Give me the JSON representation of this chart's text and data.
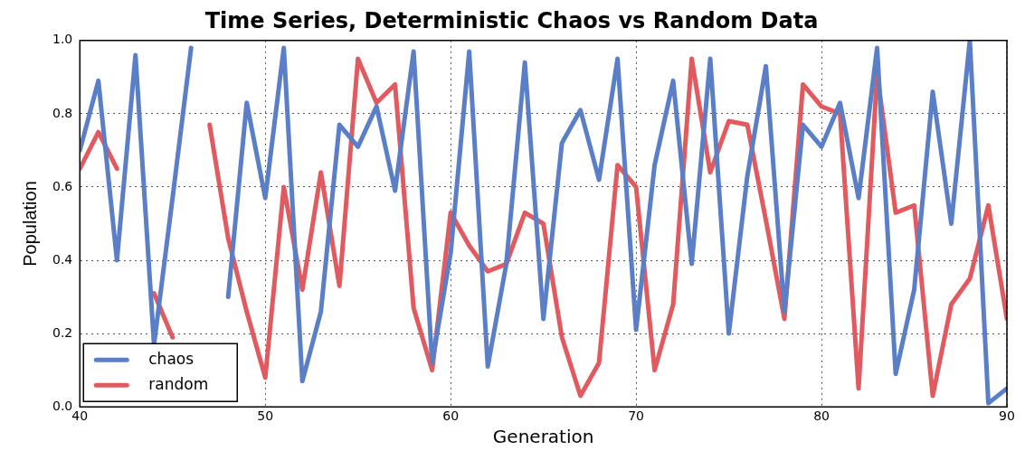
{
  "chart_data": {
    "type": "line",
    "title": "Time Series, Deterministic Chaos vs Random Data",
    "xlabel": "Generation",
    "ylabel": "Population",
    "x": [
      40,
      41,
      42,
      43,
      44,
      45,
      46,
      47,
      48,
      49,
      50,
      51,
      52,
      53,
      54,
      55,
      56,
      57,
      58,
      59,
      60,
      61,
      62,
      63,
      64,
      65,
      66,
      67,
      68,
      69,
      70,
      71,
      72,
      73,
      74,
      75,
      76,
      77,
      78,
      79,
      80,
      81,
      82,
      83,
      84,
      85,
      86,
      87,
      88,
      89,
      90
    ],
    "series": [
      {
        "name": "chaos",
        "color": "#5b7fc7",
        "values": [
          0.7,
          0.89,
          0.4,
          0.96,
          0.17,
          0.57,
          0.98,
          null,
          0.3,
          0.83,
          0.57,
          0.98,
          0.07,
          0.26,
          0.77,
          0.71,
          0.82,
          0.59,
          0.97,
          0.12,
          0.42,
          0.97,
          0.11,
          0.39,
          0.94,
          0.24,
          0.72,
          0.81,
          0.62,
          0.95,
          0.21,
          0.66,
          0.89,
          0.39,
          0.95,
          0.2,
          0.63,
          0.93,
          0.26,
          0.77,
          0.71,
          0.83,
          0.57,
          0.98,
          0.09,
          0.32,
          0.86,
          0.5,
          1.0,
          0.01,
          0.05
        ]
      },
      {
        "name": "random",
        "color": "#e05a5f",
        "values": [
          0.65,
          0.75,
          0.65,
          null,
          0.31,
          0.19,
          null,
          0.77,
          0.46,
          0.26,
          0.08,
          0.6,
          0.32,
          0.64,
          0.33,
          0.95,
          0.83,
          0.88,
          0.27,
          0.1,
          0.53,
          0.44,
          0.37,
          0.39,
          0.53,
          0.5,
          0.19,
          0.03,
          0.12,
          0.66,
          0.6,
          0.1,
          0.28,
          0.95,
          0.64,
          0.78,
          0.77,
          0.51,
          0.24,
          0.88,
          0.82,
          0.8,
          0.05,
          0.91,
          0.53,
          0.55,
          0.03,
          0.28,
          0.35,
          0.55,
          0.24
        ]
      }
    ],
    "xlim": [
      40,
      90
    ],
    "xticks": [
      40,
      50,
      60,
      70,
      80,
      90
    ],
    "ylim": [
      0,
      1
    ],
    "yticks": [
      {
        "value": 0,
        "label": "0.0"
      },
      {
        "value": 0.2,
        "label": "0.2"
      },
      {
        "value": 0.4,
        "label": "0.4"
      },
      {
        "value": 0.6,
        "label": "0.6"
      },
      {
        "value": 0.8,
        "label": "0.8"
      },
      {
        "value": 1,
        "label": "1.0"
      }
    ],
    "grid": true,
    "legend": "bottom left",
    "marker": "none",
    "line_style": "solid"
  }
}
